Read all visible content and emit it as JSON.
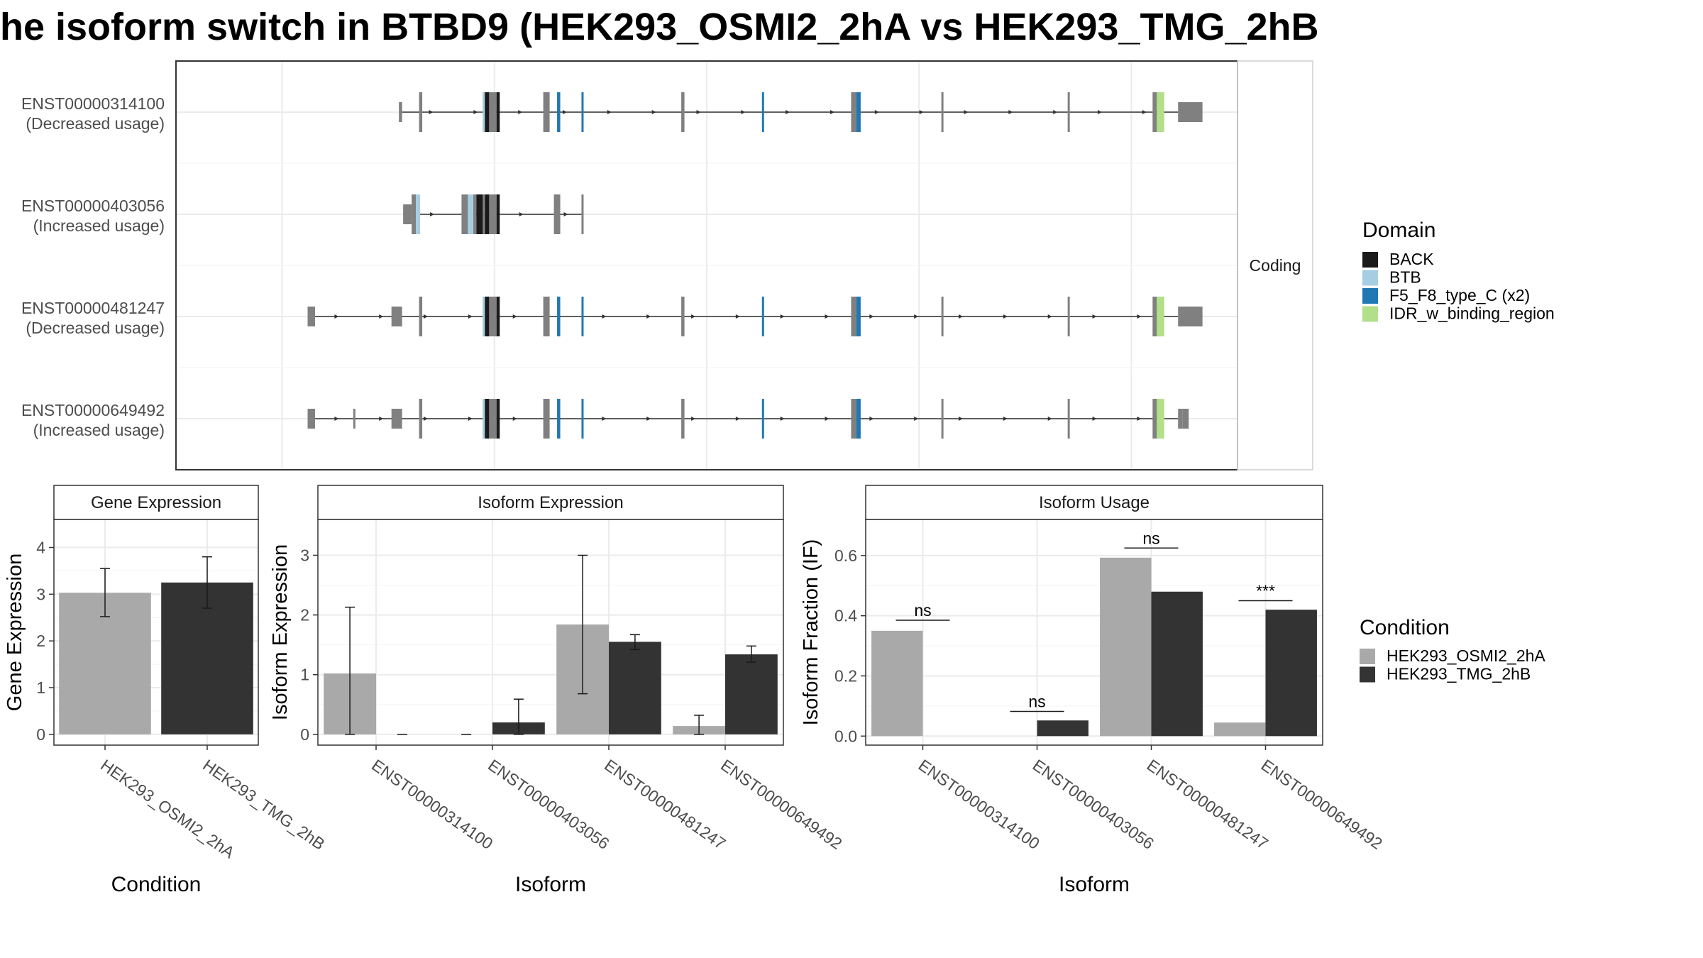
{
  "title": "he isoform switch in BTBD9 (HEK293_OSMI2_2hA vs HEK293_TMG_2hB",
  "structure_panel": {
    "strip_label": "Coding",
    "x_range": [
      0,
      1000
    ],
    "transcripts": [
      {
        "id": "ENST00000314100",
        "usage": "(Decreased usage)",
        "exons": [
          [
            229,
            232
          ],
          [
            289,
            291
          ],
          [
            295,
            302
          ],
          [
            346,
            352
          ],
          [
            476,
            479
          ],
          [
            636,
            641
          ],
          [
            721,
            723
          ],
          [
            840,
            842
          ],
          [
            920,
            924
          ]
        ],
        "utrs": [
          [
            210,
            213
          ],
          [
            944,
            967
          ]
        ],
        "domains": [
          [
            289,
            291,
            "BTB"
          ],
          [
            291,
            295,
            "BACK"
          ],
          [
            302,
            305,
            "BACK"
          ],
          [
            359,
            362,
            "F5_F8_type_C (x2)"
          ],
          [
            382,
            384,
            "F5_F8_type_C (x2)"
          ],
          [
            552,
            554,
            "F5_F8_type_C (x2)"
          ],
          [
            641,
            645,
            "F5_F8_type_C (x2)"
          ],
          [
            924,
            931,
            "IDR_w_binding_region"
          ]
        ],
        "intron_span": [
          213,
          944
        ]
      },
      {
        "id": "ENST00000403056",
        "usage": "(Increased usage)",
        "exons": [
          [
            222,
            226
          ],
          [
            269,
            275
          ],
          [
            280,
            283
          ],
          [
            289,
            291
          ],
          [
            295,
            302
          ]
        ],
        "utrs": [
          [
            214,
            222
          ]
        ],
        "domains": [
          [
            226,
            230,
            "BTB"
          ],
          [
            275,
            280,
            "BTB"
          ],
          [
            283,
            289,
            "BACK"
          ],
          [
            291,
            295,
            "BACK"
          ],
          [
            302,
            305,
            "BACK"
          ]
        ],
        "extra_exons": [
          [
            356,
            362
          ],
          [
            382,
            384
          ]
        ],
        "intron_span": [
          214,
          384
        ]
      },
      {
        "id": "ENST00000481247",
        "usage": "(Decreased usage)",
        "exons": [
          [
            229,
            232
          ],
          [
            289,
            291
          ],
          [
            295,
            302
          ],
          [
            346,
            352
          ],
          [
            476,
            479
          ],
          [
            636,
            641
          ],
          [
            721,
            723
          ],
          [
            840,
            842
          ],
          [
            920,
            924
          ]
        ],
        "utrs": [
          [
            124,
            131
          ],
          [
            203,
            213
          ],
          [
            944,
            967
          ]
        ],
        "domains": [
          [
            289,
            291,
            "BTB"
          ],
          [
            291,
            295,
            "BACK"
          ],
          [
            302,
            305,
            "BACK"
          ],
          [
            359,
            362,
            "F5_F8_type_C (x2)"
          ],
          [
            382,
            384,
            "F5_F8_type_C (x2)"
          ],
          [
            552,
            554,
            "F5_F8_type_C (x2)"
          ],
          [
            641,
            645,
            "F5_F8_type_C (x2)"
          ],
          [
            924,
            931,
            "IDR_w_binding_region"
          ]
        ],
        "intron_span": [
          124,
          944
        ]
      },
      {
        "id": "ENST00000649492",
        "usage": "(Increased usage)",
        "exons": [
          [
            229,
            232
          ],
          [
            289,
            291
          ],
          [
            295,
            302
          ],
          [
            346,
            352
          ],
          [
            476,
            479
          ],
          [
            636,
            641
          ],
          [
            721,
            723
          ],
          [
            840,
            842
          ],
          [
            920,
            924
          ]
        ],
        "utrs": [
          [
            124,
            131
          ],
          [
            167,
            169
          ],
          [
            203,
            213
          ],
          [
            944,
            948
          ]
        ],
        "domains": [
          [
            289,
            291,
            "BTB"
          ],
          [
            291,
            295,
            "BACK"
          ],
          [
            302,
            305,
            "BACK"
          ],
          [
            359,
            362,
            "F5_F8_type_C (x2)"
          ],
          [
            382,
            384,
            "F5_F8_type_C (x2)"
          ],
          [
            552,
            554,
            "F5_F8_type_C (x2)"
          ],
          [
            641,
            645,
            "F5_F8_type_C (x2)"
          ],
          [
            924,
            931,
            "IDR_w_binding_region"
          ]
        ],
        "thin_utr": [
          948,
          954
        ],
        "intron_span": [
          124,
          944
        ]
      }
    ]
  },
  "domain_legend": {
    "title": "Domain",
    "items": [
      {
        "label": "BACK",
        "color": "#1a1a1a"
      },
      {
        "label": "BTB",
        "color": "#a6cee3"
      },
      {
        "label": "F5_F8_type_C (x2)",
        "color": "#1f78b4"
      },
      {
        "label": "IDR_w_binding_region",
        "color": "#b2df8a"
      }
    ]
  },
  "condition_legend": {
    "title": "Condition",
    "items": [
      {
        "label": "HEK293_OSMI2_2hA",
        "color": "#a9a9a9"
      },
      {
        "label": "HEK293_TMG_2hB",
        "color": "#333333"
      }
    ]
  },
  "chart_data": [
    {
      "type": "bar",
      "title": "Gene Expression",
      "xlabel": "Condition",
      "ylabel": "Gene Expression",
      "categories": [
        "HEK293_OSMI2_2hA",
        "HEK293_TMG_2hB"
      ],
      "values": [
        3.03,
        3.25
      ],
      "errors": [
        [
          2.52,
          3.55
        ],
        [
          2.7,
          3.8
        ]
      ],
      "colors": [
        "#a9a9a9",
        "#333333"
      ],
      "ylim": [
        -0.23,
        4.6
      ],
      "yticks": [
        0,
        1,
        2,
        3,
        4
      ]
    },
    {
      "type": "bar",
      "title": "Isoform Expression",
      "xlabel": "Isoform",
      "ylabel": "Isoform Expression",
      "categories": [
        "ENST00000314100",
        "ENST00000403056",
        "ENST00000481247",
        "ENST00000649492"
      ],
      "series": [
        {
          "name": "HEK293_OSMI2_2hA",
          "values": [
            1.02,
            0.0,
            1.84,
            0.14
          ],
          "errors": [
            [
              0.0,
              2.13
            ],
            [
              0.0,
              0.0
            ],
            [
              0.68,
              3.0
            ],
            [
              0.0,
              0.32
            ]
          ]
        },
        {
          "name": "HEK293_TMG_2hB",
          "values": [
            0.0,
            0.2,
            1.55,
            1.34
          ],
          "errors": [
            [
              0.0,
              0.0
            ],
            [
              0.0,
              0.59
            ],
            [
              1.42,
              1.67
            ],
            [
              1.21,
              1.48
            ]
          ]
        }
      ],
      "ylim": [
        -0.18,
        3.6
      ],
      "yticks": [
        0,
        1,
        2,
        3
      ]
    },
    {
      "type": "bar",
      "title": "Isoform Usage",
      "xlabel": "Isoform",
      "ylabel": "Isoform Fraction (IF)",
      "categories": [
        "ENST00000314100",
        "ENST00000403056",
        "ENST00000481247",
        "ENST00000649492"
      ],
      "series": [
        {
          "name": "HEK293_OSMI2_2hA",
          "values": [
            0.35,
            0.0,
            0.593,
            0.045
          ]
        },
        {
          "name": "HEK293_TMG_2hB",
          "values": [
            0.0,
            0.052,
            0.48,
            0.42
          ]
        }
      ],
      "significance": [
        {
          "category": 0,
          "label": "ns",
          "y": 0.385
        },
        {
          "category": 1,
          "label": "ns",
          "y": 0.082
        },
        {
          "category": 2,
          "label": "ns",
          "y": 0.625
        },
        {
          "category": 3,
          "label": "***",
          "y": 0.45
        }
      ],
      "ylim": [
        -0.03,
        0.72
      ],
      "yticks": [
        0.0,
        0.2,
        0.4,
        0.6
      ],
      "ytick_labels": [
        "0.0",
        "0.2",
        "0.4",
        "0.6"
      ]
    }
  ]
}
